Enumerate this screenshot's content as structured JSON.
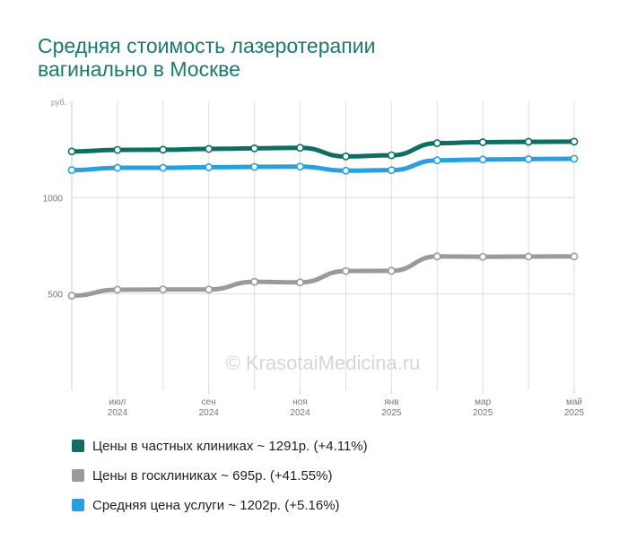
{
  "chart_data": {
    "type": "line",
    "title": "Средняя стоимость лазеротерапии вагинально в Москве",
    "title_lines": [
      "Средняя стоимость лазеротерапии",
      "вагинально в Москве"
    ],
    "ylabel": "руб.",
    "ylim": [
      0,
      1500
    ],
    "yticks": [
      500,
      1000
    ],
    "grid": true,
    "x_ticks": [
      {
        "index": 1,
        "line1": "июл",
        "line2": "2024"
      },
      {
        "index": 3,
        "line1": "сен",
        "line2": "2024"
      },
      {
        "index": 5,
        "line1": "ноя",
        "line2": "2024"
      },
      {
        "index": 7,
        "line1": "янв",
        "line2": "2025"
      },
      {
        "index": 9,
        "line1": "мар",
        "line2": "2025"
      },
      {
        "index": 11,
        "line1": "май",
        "line2": "2025"
      }
    ],
    "series": [
      {
        "name": "Цены в частных клиниках",
        "color": "#0d6e63",
        "values": [
          1240,
          1248,
          1249,
          1253,
          1256,
          1259,
          1214,
          1220,
          1283,
          1288,
          1290,
          1291
        ]
      },
      {
        "name": "Средняя цена услуги",
        "color": "#27a0e1",
        "values": [
          1143,
          1155,
          1155,
          1158,
          1160,
          1161,
          1140,
          1143,
          1194,
          1198,
          1200,
          1202
        ]
      },
      {
        "name": "Цены в госклиниках",
        "color": "#9a9a9a",
        "values": [
          491,
          522,
          523,
          523,
          563,
          560,
          619,
          620,
          695,
          693,
          694,
          695
        ]
      }
    ],
    "legend_position": "bottom",
    "watermark": "© KrasotaiMedicina.ru"
  },
  "legend": [
    {
      "label": "Цены в частных клиниках ~ 1291р. (+4.11%)",
      "color": "#0d6e63"
    },
    {
      "label": "Цены в госклиниках ~ 695р. (+41.55%)",
      "color": "#9a9a9a"
    },
    {
      "label": "Средняя цена услуги ~ 1202р. (+5.16%)",
      "color": "#27a0e1"
    }
  ]
}
